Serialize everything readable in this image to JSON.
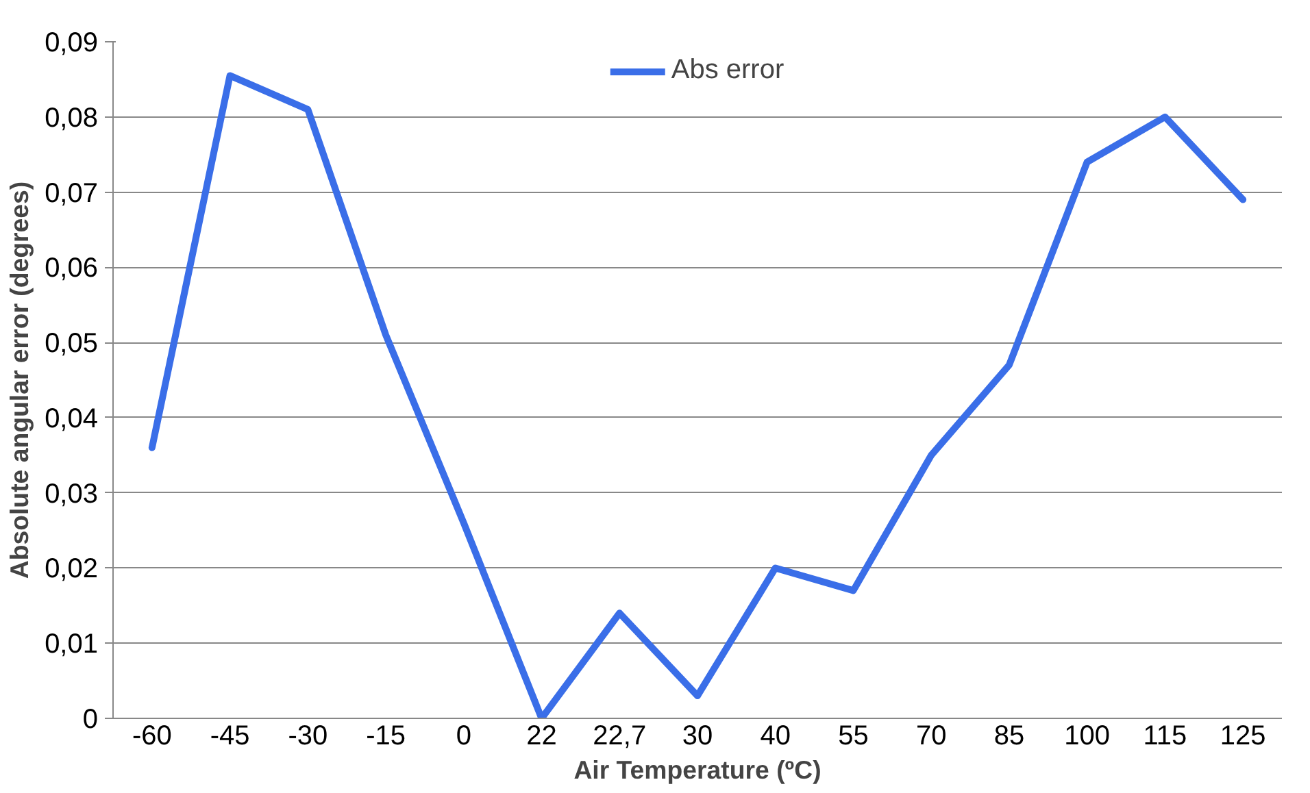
{
  "chart_data": {
    "type": "line",
    "xlabel": "Air Temperature (ºC)",
    "ylabel": "Absolute angular error (degrees)",
    "categories": [
      "-60",
      "-45",
      "-30",
      "-15",
      "0",
      "22",
      "22,7",
      "30",
      "40",
      "55",
      "70",
      "85",
      "100",
      "115",
      "125"
    ],
    "series": [
      {
        "name": "Abs error",
        "color": "#3a6ee8",
        "values": [
          0.036,
          0.0855,
          0.081,
          0.051,
          0.026,
          0,
          0.014,
          0.003,
          0.02,
          0.017,
          0.035,
          0.047,
          0.074,
          0.08,
          0.069
        ]
      }
    ],
    "ylim": [
      0,
      0.09
    ],
    "yticks": [
      {
        "value": 0,
        "label": "0"
      },
      {
        "value": 0.01,
        "label": "0,01"
      },
      {
        "value": 0.02,
        "label": "0,02"
      },
      {
        "value": 0.03,
        "label": "0,03"
      },
      {
        "value": 0.04,
        "label": "0,04"
      },
      {
        "value": 0.05,
        "label": "0,05"
      },
      {
        "value": 0.06,
        "label": "0,06"
      },
      {
        "value": 0.07,
        "label": "0,07"
      },
      {
        "value": 0.08,
        "label": "0,08"
      },
      {
        "value": 0.09,
        "label": "0,09"
      }
    ],
    "grid": "y",
    "legend": "top",
    "marker": "none",
    "line_style": "solid"
  }
}
